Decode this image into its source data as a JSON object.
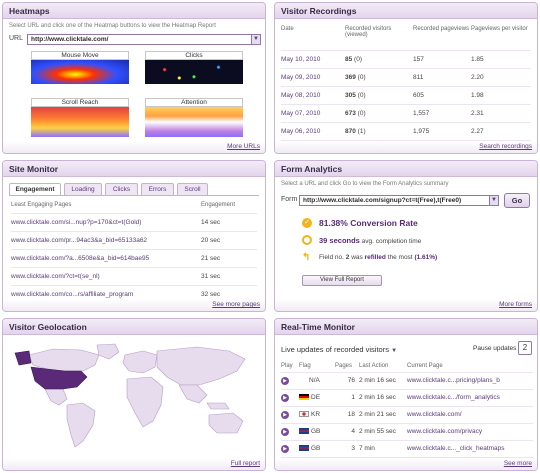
{
  "heatmaps": {
    "title": "Heatmaps",
    "instruction": "Select URL and click one of the Heatmap buttons to view the Heatmap Report",
    "url_label": "URL",
    "url_value": "http://www.clicktale.com/",
    "buttons": [
      "Mouse Move",
      "Clicks",
      "Scroll Reach",
      "Attention"
    ],
    "footer_link": "More URLs"
  },
  "recordings": {
    "title": "Visitor Recordings",
    "columns": [
      "Date",
      "Recorded visitors (viewed)",
      "Recorded pageviews",
      "Pageviews per visitor"
    ],
    "rows": [
      {
        "date": "May 10, 2010",
        "visitors": "85",
        "viewed": "(0)",
        "pageviews": "157",
        "per": "1.85"
      },
      {
        "date": "May 09, 2010",
        "visitors": "369",
        "viewed": "(0)",
        "pageviews": "811",
        "per": "2.20"
      },
      {
        "date": "May 08, 2010",
        "visitors": "305",
        "viewed": "(0)",
        "pageviews": "605",
        "per": "1.98"
      },
      {
        "date": "May 07, 2010",
        "visitors": "673",
        "viewed": "(0)",
        "pageviews": "1,557",
        "per": "2.31"
      },
      {
        "date": "May 06, 2010",
        "visitors": "870",
        "viewed": "(1)",
        "pageviews": "1,975",
        "per": "2.27"
      }
    ],
    "footer_link": "Search recordings"
  },
  "site_monitor": {
    "title": "Site Monitor",
    "tabs": [
      "Engagement",
      "Loading",
      "Clicks",
      "Errors",
      "Scroll"
    ],
    "columns": [
      "Least Engaging Pages",
      "Engagement"
    ],
    "rows": [
      {
        "page": "www.clicktale.com/si...nup?p=170&ct=t(Gold)",
        "value": "14 sec"
      },
      {
        "page": "www.clicktale.com/pr...94ac3&a_bid=65133a62",
        "value": "20 sec"
      },
      {
        "page": "www.clicktale.com/?a...6508e&a_bid=614bae95",
        "value": "21 sec"
      },
      {
        "page": "www.clicktale.com/?ct=t(se_nl)",
        "value": "31 sec"
      },
      {
        "page": "www.clicktale.com/co...rs/affiliate_program",
        "value": "32 sec"
      }
    ],
    "footer_link": "See more pages"
  },
  "form_analytics": {
    "title": "Form Analytics",
    "instruction": "Select a URL and click Go to view the Form Analytics summary",
    "form_label": "Form",
    "form_value": "http://www.clicktale.com/signup?ct=t(Free),t(Free0)",
    "go_label": "Go",
    "conversion_value": "81.38%",
    "conversion_label": "Conversion Rate",
    "completion_value": "39 seconds",
    "completion_label": "avg. completion time",
    "refill_prefix": "Field no.",
    "refill_field": "2",
    "refill_middle": "was",
    "refill_word": "refilled",
    "refill_suffix": "the most",
    "refill_pct": "(1.61%)",
    "report_button": "View Full Report",
    "footer_link": "More forms"
  },
  "geolocation": {
    "title": "Visitor Geolocation",
    "footer_link": "Full report",
    "highlight_color": "#5a2a78"
  },
  "realtime": {
    "title": "Real-Time Monitor",
    "live_text": "Live updates of recorded visitors",
    "pause_label": "Pause updates",
    "pause_count": "2",
    "columns": [
      "Play",
      "Flag",
      "Pages",
      "Last Action",
      "Current Page"
    ],
    "rows": [
      {
        "flag": "N/A",
        "pages": "76",
        "last": "2 min 16 sec",
        "page": "www.clicktale.c...pricing/plans_b"
      },
      {
        "flag": "DE",
        "pages": "1",
        "last": "2 min 16 sec",
        "page": "www.clicktale.c.../form_analytics"
      },
      {
        "flag": "KR",
        "pages": "18",
        "last": "2 min 21 sec",
        "page": "www.clicktale.com/"
      },
      {
        "flag": "GB",
        "pages": "4",
        "last": "2 min 55 sec",
        "page": "www.clicktale.com/privacy"
      },
      {
        "flag": "GB",
        "pages": "3",
        "last": "7 min",
        "page": "www.clicktale.c..._click_heatmaps"
      }
    ],
    "footer_link": "See more"
  }
}
